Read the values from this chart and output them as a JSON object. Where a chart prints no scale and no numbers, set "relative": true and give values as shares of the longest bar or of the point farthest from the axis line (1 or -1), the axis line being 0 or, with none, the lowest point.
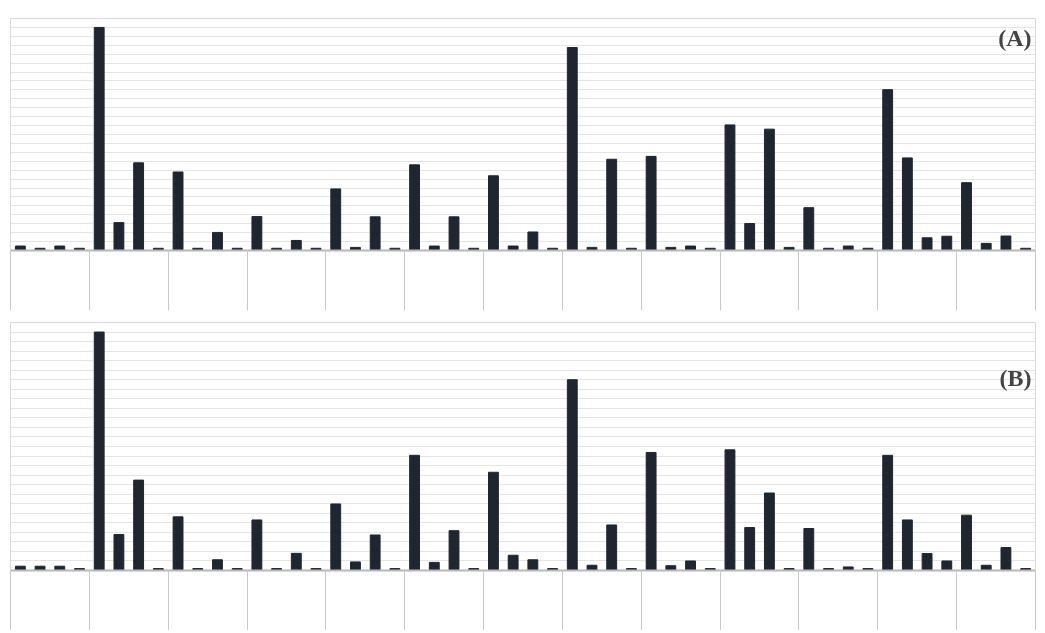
{
  "chart_data": [
    {
      "type": "bar",
      "relative": true,
      "grid": "y",
      "annotations": [
        "(A)"
      ],
      "categories": [
        null,
        null,
        null,
        null,
        null,
        null,
        null,
        null,
        null,
        null,
        null,
        null,
        null,
        null,
        null,
        null,
        null,
        null,
        null,
        null,
        null,
        null,
        null,
        null,
        null,
        null,
        null,
        null,
        null,
        null,
        null,
        null,
        null,
        null,
        null,
        null,
        null,
        null,
        null,
        null,
        null,
        null,
        null,
        null,
        null,
        null,
        null,
        null,
        null,
        null,
        null,
        null
      ],
      "series": [
        {
          "color": "#1f2630",
          "values": [
            0.02,
            0.01,
            0.02,
            0.01,
            1.0,
            0.125,
            0.393,
            0.01,
            0.352,
            0.01,
            0.081,
            0.01,
            0.152,
            0.01,
            0.045,
            0.01,
            0.276,
            0.014,
            0.151,
            0.01,
            0.384,
            0.02,
            0.151,
            0.01,
            0.335,
            0.02,
            0.083,
            0.01,
            0.91,
            0.014,
            0.409,
            0.01,
            0.422,
            0.014,
            0.02,
            0.01,
            0.563,
            0.121,
            0.544,
            0.014,
            0.192,
            0.01,
            0.02,
            0.01,
            0.721,
            0.415,
            0.057,
            0.064,
            0.304,
            0.032,
            0.065,
            0.01
          ]
        }
      ]
    },
    {
      "type": "bar",
      "relative": true,
      "grid": "y",
      "annotations": [
        "(B)"
      ],
      "categories": [
        null,
        null,
        null,
        null,
        null,
        null,
        null,
        null,
        null,
        null,
        null,
        null,
        null,
        null,
        null,
        null,
        null,
        null,
        null,
        null,
        null,
        null,
        null,
        null,
        null,
        null,
        null,
        null,
        null,
        null,
        null,
        null,
        null,
        null,
        null,
        null,
        null,
        null,
        null,
        null,
        null,
        null,
        null,
        null,
        null,
        null,
        null,
        null,
        null,
        null,
        null,
        null
      ],
      "series": [
        {
          "color": "#1f2630",
          "values": [
            0.018,
            0.018,
            0.018,
            0.008,
            1.0,
            0.151,
            0.379,
            0.008,
            0.225,
            0.008,
            0.045,
            0.008,
            0.212,
            0.008,
            0.072,
            0.008,
            0.279,
            0.036,
            0.149,
            0.008,
            0.483,
            0.034,
            0.167,
            0.008,
            0.412,
            0.064,
            0.045,
            0.008,
            0.8,
            0.022,
            0.191,
            0.008,
            0.495,
            0.02,
            0.04,
            0.008,
            0.506,
            0.18,
            0.325,
            0.008,
            0.176,
            0.008,
            0.015,
            0.008,
            0.483,
            0.212,
            0.071,
            0.04,
            0.232,
            0.022,
            0.096,
            0.008
          ]
        }
      ]
    }
  ]
}
